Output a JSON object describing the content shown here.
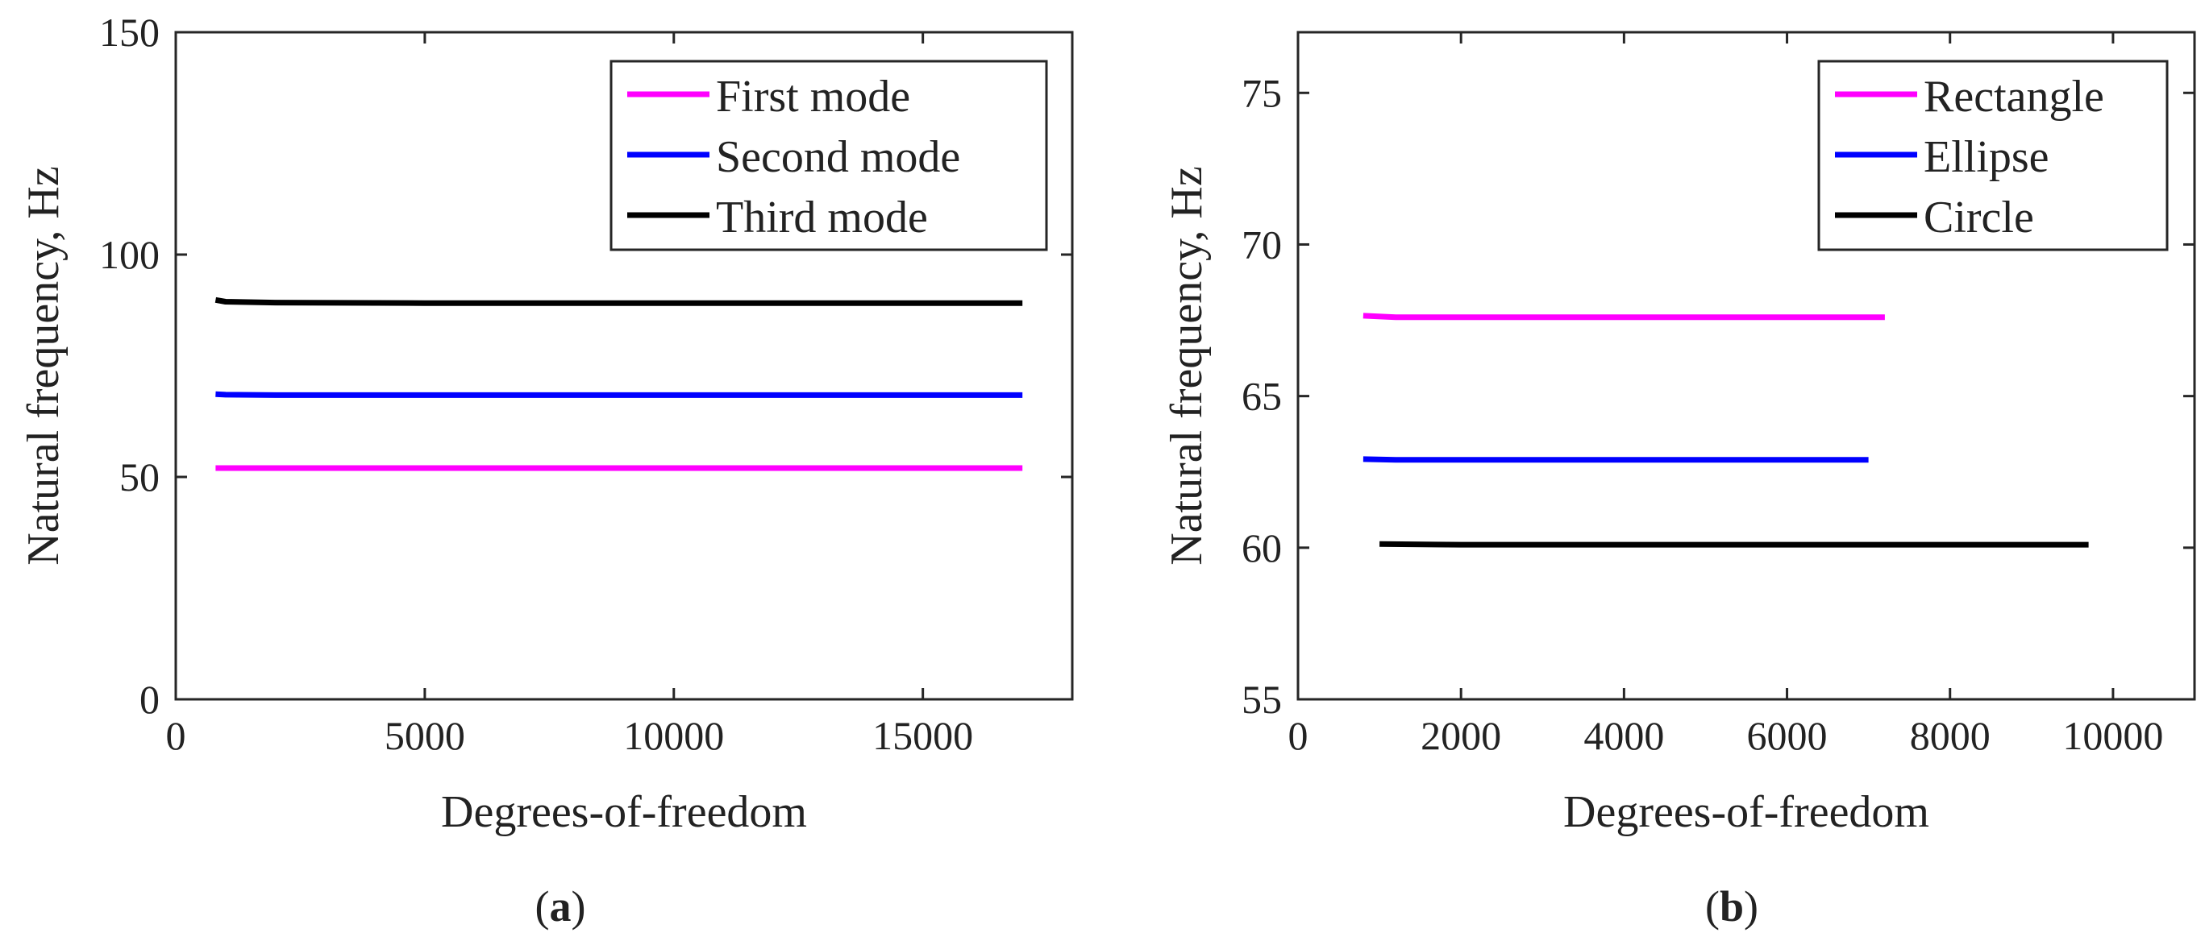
{
  "chart_data": [
    {
      "type": "line",
      "panel_label": "a",
      "xlabel": "Degrees-of-freedom",
      "ylabel": "Natural frequency, Hz",
      "xlim": [
        0,
        18000
      ],
      "ylim": [
        0,
        150
      ],
      "xticks": [
        0,
        5000,
        10000,
        15000
      ],
      "yticks": [
        0,
        50,
        100,
        150
      ],
      "grid": false,
      "legend_position": "top-right",
      "series": [
        {
          "name": "First mode",
          "color": "#ff00ff",
          "x": [
            800,
            1000,
            2000,
            5000,
            10000,
            17000
          ],
          "y": [
            52.0,
            52.0,
            52.0,
            52.0,
            52.0,
            52.0
          ]
        },
        {
          "name": "Second mode",
          "color": "#0000ff",
          "x": [
            800,
            1000,
            2000,
            5000,
            10000,
            17000
          ],
          "y": [
            68.6,
            68.5,
            68.4,
            68.4,
            68.4,
            68.4
          ]
        },
        {
          "name": "Third mode",
          "color": "#000000",
          "x": [
            800,
            1000,
            2000,
            5000,
            10000,
            17000
          ],
          "y": [
            89.8,
            89.4,
            89.2,
            89.1,
            89.1,
            89.1
          ]
        }
      ]
    },
    {
      "type": "line",
      "panel_label": "b",
      "xlabel": "Degrees-of-freedom",
      "ylabel": "Natural frequency, Hz",
      "xlim": [
        0,
        11000
      ],
      "ylim": [
        55,
        77
      ],
      "xticks": [
        0,
        2000,
        4000,
        6000,
        8000,
        10000
      ],
      "yticks": [
        55,
        60,
        65,
        70,
        75
      ],
      "grid": false,
      "legend_position": "top-right",
      "series": [
        {
          "name": "Rectangle",
          "color": "#ff00ff",
          "x": [
            800,
            1200,
            3000,
            5000,
            7200
          ],
          "y": [
            67.65,
            67.6,
            67.6,
            67.6,
            67.6
          ]
        },
        {
          "name": "Ellipse",
          "color": "#0000ff",
          "x": [
            800,
            1200,
            3000,
            5000,
            7000
          ],
          "y": [
            62.92,
            62.9,
            62.9,
            62.9,
            62.9
          ]
        },
        {
          "name": "Circle",
          "color": "#000000",
          "x": [
            1000,
            2000,
            4000,
            6000,
            8000,
            9700
          ],
          "y": [
            60.12,
            60.1,
            60.1,
            60.1,
            60.1,
            60.1
          ]
        }
      ]
    }
  ]
}
